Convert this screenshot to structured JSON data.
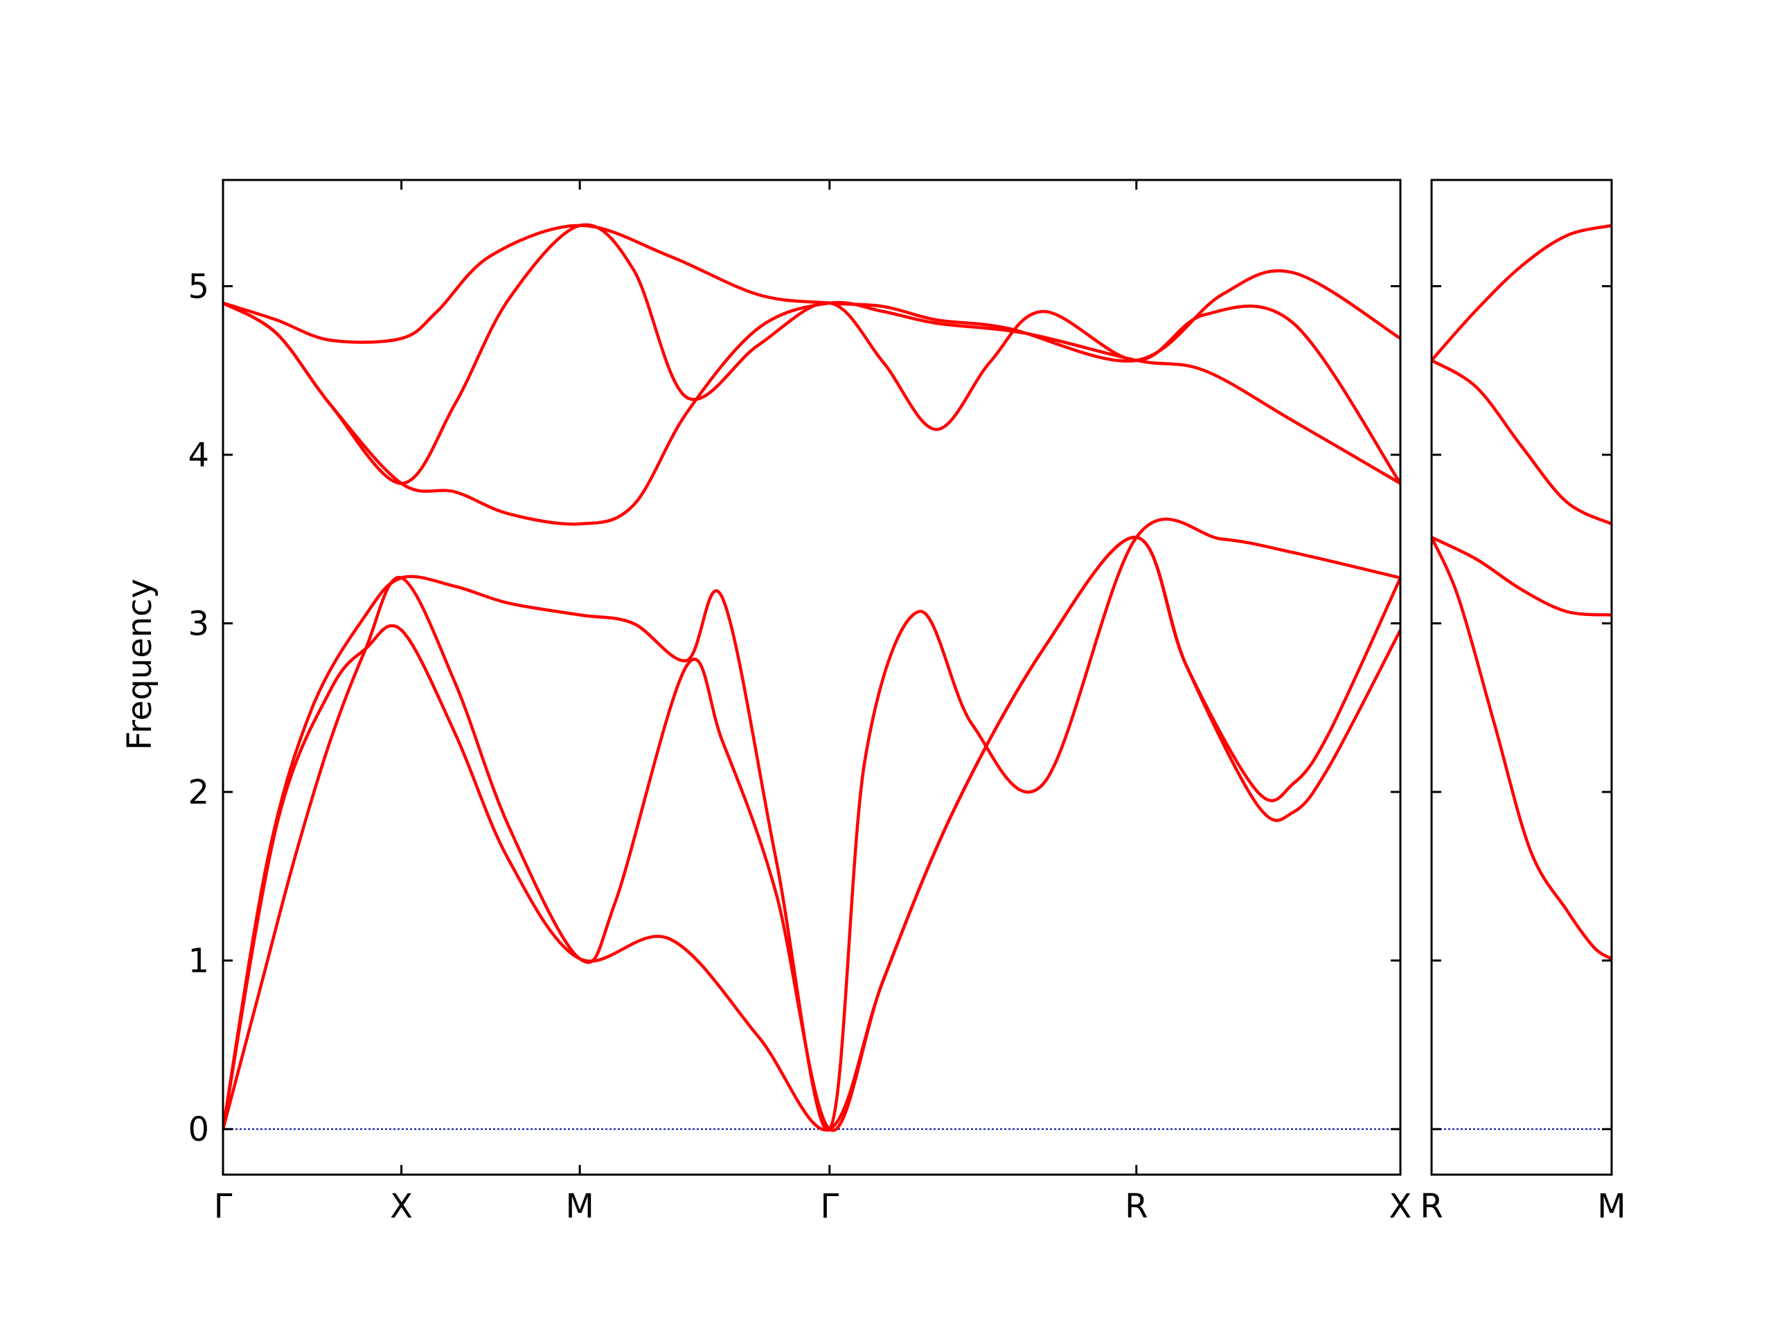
{
  "chart_data": {
    "type": "line",
    "title": "",
    "xlabel": "",
    "ylabel": "Frequency",
    "ylim": [
      -0.27,
      5.63
    ],
    "yticks": [
      0,
      1,
      2,
      3,
      4,
      5
    ],
    "grid": false,
    "line_color": "#ff0000",
    "zero_line_color": "#0000aa",
    "panels": [
      {
        "name": "main",
        "xlim": [
          0,
          6.6
        ],
        "ticks": [
          {
            "x": 0,
            "label": "Γ"
          },
          {
            "x": 1.0,
            "label": "X"
          },
          {
            "x": 2.0,
            "label": "M"
          },
          {
            "x": 3.4,
            "label": "Γ"
          },
          {
            "x": 5.12,
            "label": "R"
          },
          {
            "x": 6.6,
            "label": "X"
          }
        ],
        "bands": [
          {
            "x": [
              0,
              0.3,
              0.6,
              1.0,
              1.2,
              1.5,
              2.0,
              2.5,
              3.0,
              3.4,
              3.7,
              4.0,
              4.4,
              5.12,
              5.6,
              6.0,
              6.6
            ],
            "y": [
              4.9,
              4.8,
              4.68,
              4.69,
              4.85,
              5.18,
              5.36,
              5.18,
              4.95,
              4.9,
              4.88,
              4.8,
              4.75,
              4.56,
              4.95,
              5.08,
              4.69
            ]
          },
          {
            "x": [
              0,
              0.3,
              0.6,
              1.0,
              1.3,
              1.6,
              2.0,
              2.3,
              2.6,
              3.0,
              3.4,
              3.7,
              4.0,
              4.3,
              4.6,
              5.12,
              5.5,
              6.0,
              6.6
            ],
            "y": [
              4.9,
              4.72,
              4.3,
              3.83,
              4.3,
              4.92,
              5.36,
              5.1,
              4.34,
              4.65,
              4.9,
              4.55,
              4.15,
              4.55,
              4.85,
              4.56,
              4.83,
              4.78,
              3.83
            ]
          },
          {
            "x": [
              0,
              0.3,
              0.6,
              1.0,
              1.3,
              1.6,
              2.0,
              2.3,
              2.6,
              3.0,
              3.4,
              3.7,
              4.0,
              4.5,
              5.12,
              5.5,
              6.0,
              6.6
            ],
            "y": [
              4.9,
              4.72,
              4.3,
              3.83,
              3.78,
              3.65,
              3.59,
              3.7,
              4.25,
              4.75,
              4.9,
              4.85,
              4.78,
              4.72,
              4.56,
              4.5,
              4.2,
              3.83
            ]
          },
          {
            "x": [
              0,
              0.25,
              0.5,
              0.8,
              1.0,
              1.3,
              1.6,
              2.0,
              2.3,
              2.6,
              2.8,
              3.1,
              3.4,
              3.6,
              3.9,
              4.2,
              4.6,
              5.12,
              5.6,
              6.0,
              6.6
            ],
            "y": [
              0,
              1.6,
              2.5,
              3.05,
              3.27,
              3.22,
              3.12,
              3.05,
              3.0,
              2.78,
              3.15,
              1.6,
              0,
              2.2,
              3.07,
              2.4,
              2.05,
              3.51,
              3.5,
              3.42,
              3.27
            ]
          },
          {
            "x": [
              0,
              0.2,
              0.4,
              0.6,
              0.8,
              1.0,
              1.3,
              1.6,
              2.0,
              2.2,
              2.6,
              2.8,
              3.1,
              3.4,
              3.7,
              4.1,
              4.6,
              5.12,
              5.4,
              5.8,
              6.0,
              6.2,
              6.6
            ],
            "y": [
              0,
              0.8,
              1.6,
              2.3,
              2.85,
              3.27,
              2.65,
              1.8,
              1.01,
              1.35,
              2.75,
              2.3,
              1.4,
              0,
              0.88,
              1.9,
              2.85,
              3.51,
              2.75,
              2.0,
              2.05,
              2.35,
              3.27
            ]
          },
          {
            "x": [
              0,
              0.3,
              0.6,
              0.8,
              1.0,
              1.3,
              1.6,
              2.0,
              2.5,
              3.0,
              3.4,
              3.7,
              4.1,
              4.6,
              5.12,
              5.4,
              5.8,
              6.0,
              6.2,
              6.6
            ],
            "y": [
              0,
              1.8,
              2.6,
              2.85,
              2.96,
              2.35,
              1.6,
              1.01,
              1.13,
              0.55,
              0,
              0.88,
              1.9,
              2.85,
              3.51,
              2.75,
              1.92,
              1.88,
              2.15,
              2.96
            ]
          }
        ]
      },
      {
        "name": "side",
        "xlim": [
          0,
          1.0
        ],
        "ticks": [
          {
            "x": 0,
            "label": "R"
          },
          {
            "x": 1.0,
            "label": "M"
          }
        ],
        "bands": [
          {
            "x": [
              0,
              0.25,
              0.5,
              0.75,
              1.0
            ],
            "y": [
              4.56,
              4.86,
              5.12,
              5.3,
              5.36
            ]
          },
          {
            "x": [
              0,
              0.25,
              0.5,
              0.75,
              1.0
            ],
            "y": [
              4.56,
              4.4,
              4.05,
              3.72,
              3.59
            ]
          },
          {
            "x": [
              0,
              0.25,
              0.5,
              0.75,
              1.0
            ],
            "y": [
              3.51,
              3.38,
              3.2,
              3.07,
              3.05
            ]
          },
          {
            "x": [
              0,
              0.15,
              0.35,
              0.55,
              0.75,
              0.9,
              1.0
            ],
            "y": [
              3.51,
              3.15,
              2.4,
              1.65,
              1.3,
              1.08,
              1.01
            ]
          }
        ]
      }
    ]
  }
}
